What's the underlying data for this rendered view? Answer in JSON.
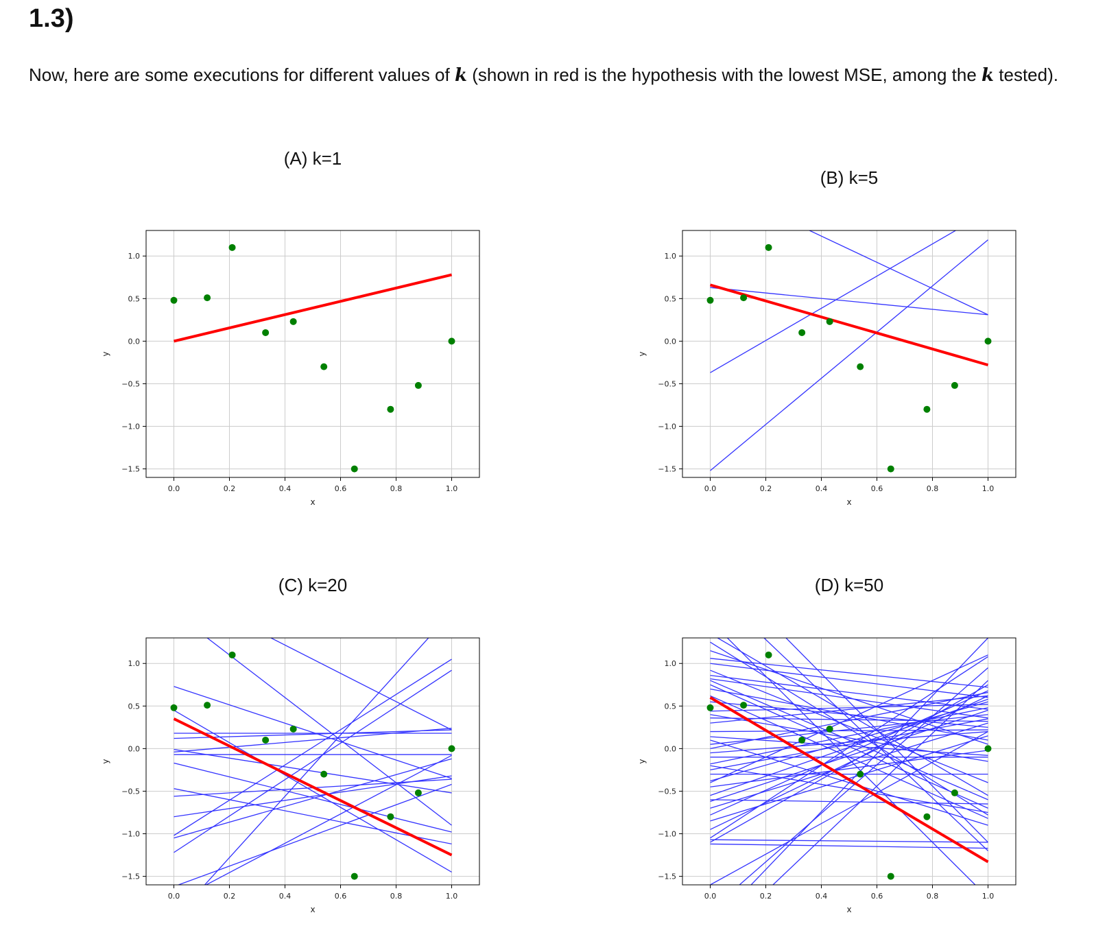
{
  "heading": "1.3)",
  "intro": {
    "part1": "Now, here are some executions for different values of ",
    "k1": "k",
    "part2": " (shown in red is the hypothesis with the lowest MSE, among the ",
    "k2": "k",
    "part3": " tested)."
  },
  "colors": {
    "points": "#008000",
    "best": "#ff0000",
    "candidates": "#3333ff",
    "grid": "#cccccc"
  },
  "chart_data": [
    {
      "type": "scatter",
      "title": "(A) k=1",
      "xlabel": "x",
      "ylabel": "y",
      "xlim": [
        -0.1,
        1.1
      ],
      "ylim": [
        -1.6,
        1.3
      ],
      "xticks": [
        "0.0",
        "0.2",
        "0.4",
        "0.6",
        "0.8",
        "1.0"
      ],
      "yticks": [
        "1.0",
        "0.5",
        "0.0",
        "−0.5",
        "−1.0",
        "−1.5"
      ],
      "grid": true,
      "points": {
        "x": [
          0.0,
          0.12,
          0.21,
          0.33,
          0.43,
          0.54,
          0.65,
          0.78,
          0.88,
          1.0
        ],
        "y": [
          0.48,
          0.51,
          1.1,
          0.1,
          0.23,
          -0.3,
          -1.5,
          -0.8,
          -0.52,
          0.0
        ]
      },
      "best_line": {
        "x0": 0,
        "y0": 0.0,
        "x1": 1,
        "y1": 0.78
      },
      "candidate_lines": []
    },
    {
      "type": "scatter",
      "title": "(B) k=5",
      "xlabel": "x",
      "ylabel": "y",
      "xlim": [
        -0.1,
        1.1
      ],
      "ylim": [
        -1.6,
        1.3
      ],
      "xticks": [
        "0.0",
        "0.2",
        "0.4",
        "0.6",
        "0.8",
        "1.0"
      ],
      "yticks": [
        "1.0",
        "0.5",
        "0.0",
        "−0.5",
        "−1.0",
        "−1.5"
      ],
      "grid": true,
      "points": {
        "x": [
          0.0,
          0.12,
          0.21,
          0.33,
          0.43,
          0.54,
          0.65,
          0.78,
          0.88,
          1.0
        ],
        "y": [
          0.48,
          0.51,
          1.1,
          0.1,
          0.23,
          -0.3,
          -1.5,
          -0.8,
          -0.52,
          0.0
        ]
      },
      "best_line": {
        "x0": 0,
        "y0": 0.66,
        "x1": 1,
        "y1": -0.28
      },
      "candidate_lines": [
        [
          -0.37,
          1.52
        ],
        [
          -1.52,
          1.19
        ],
        [
          1.85,
          0.31
        ],
        [
          0.63,
          0.31
        ]
      ]
    },
    {
      "type": "scatter",
      "title": "(C) k=20",
      "xlabel": "x",
      "ylabel": "y",
      "xlim": [
        -0.1,
        1.1
      ],
      "ylim": [
        -1.6,
        1.3
      ],
      "xticks": [
        "0.0",
        "0.2",
        "0.4",
        "0.6",
        "0.8",
        "1.0"
      ],
      "yticks": [
        "1.0",
        "0.5",
        "0.0",
        "−0.5",
        "−1.0",
        "−1.5"
      ],
      "grid": true,
      "points": {
        "x": [
          0.0,
          0.12,
          0.21,
          0.33,
          0.43,
          0.54,
          0.65,
          0.78,
          0.88,
          1.0
        ],
        "y": [
          0.48,
          0.51,
          1.1,
          0.1,
          0.23,
          -0.3,
          -1.5,
          -0.8,
          -0.52,
          0.0
        ]
      },
      "best_line": {
        "x0": 0,
        "y0": 0.35,
        "x1": 1,
        "y1": -1.25
      },
      "candidate_lines": [
        [
          0.73,
          -0.35
        ],
        [
          -1.02,
          1.05
        ],
        [
          0.18,
          0.18
        ],
        [
          0.12,
          0.22
        ],
        [
          -0.07,
          -0.07
        ],
        [
          -0.04,
          0.24
        ],
        [
          -0.56,
          -0.36
        ],
        [
          -0.8,
          -0.32
        ],
        [
          -1.22,
          0.92
        ],
        [
          -1.62,
          -0.42
        ],
        [
          -0.17,
          -0.98
        ],
        [
          -0.47,
          -1.12
        ],
        [
          -0.01,
          -0.52
        ],
        [
          -2.0,
          1.6
        ],
        [
          1.88,
          0.22
        ],
        [
          -1.05,
          -0.12
        ],
        [
          -1.8,
          -0.08
        ],
        [
          1.6,
          -0.9
        ],
        [
          0.45,
          -1.45
        ]
      ]
    },
    {
      "type": "scatter",
      "title": "(D) k=50",
      "xlabel": "x",
      "ylabel": "y",
      "xlim": [
        -0.1,
        1.1
      ],
      "ylim": [
        -1.6,
        1.3
      ],
      "xticks": [
        "0.0",
        "0.2",
        "0.4",
        "0.6",
        "0.8",
        "1.0"
      ],
      "yticks": [
        "1.0",
        "0.5",
        "0.0",
        "−0.5",
        "−1.0",
        "−1.5"
      ],
      "grid": true,
      "points": {
        "x": [
          0.0,
          0.12,
          0.21,
          0.33,
          0.43,
          0.54,
          0.65,
          0.78,
          0.88,
          1.0
        ],
        "y": [
          0.48,
          0.51,
          1.1,
          0.1,
          0.23,
          -0.3,
          -1.5,
          -0.8,
          -0.52,
          0.0
        ]
      },
      "best_line": {
        "x0": 0,
        "y0": 0.6,
        "x1": 1,
        "y1": -1.33
      },
      "candidate_lines": [
        [
          1.06,
          0.72
        ],
        [
          1.0,
          0.6
        ],
        [
          0.86,
          0.46
        ],
        [
          0.82,
          0.36
        ],
        [
          0.8,
          -0.6
        ],
        [
          0.7,
          0.1
        ],
        [
          0.62,
          -0.82
        ],
        [
          0.55,
          0.25
        ],
        [
          0.44,
          0.52
        ],
        [
          0.36,
          0.32
        ],
        [
          0.3,
          0.62
        ],
        [
          0.2,
          0.22
        ],
        [
          0.14,
          -0.08
        ],
        [
          0.05,
          0.4
        ],
        [
          0.0,
          0.66
        ],
        [
          -0.05,
          0.2
        ],
        [
          -0.1,
          -0.1
        ],
        [
          -0.18,
          0.48
        ],
        [
          -0.25,
          0.35
        ],
        [
          -0.3,
          -0.3
        ],
        [
          -0.38,
          0.55
        ],
        [
          -0.45,
          -0.02
        ],
        [
          -0.55,
          0.58
        ],
        [
          -0.62,
          0.45
        ],
        [
          -0.7,
          0.3
        ],
        [
          -0.78,
          0.68
        ],
        [
          -0.85,
          0.15
        ],
        [
          -0.95,
          0.62
        ],
        [
          -1.05,
          1.08
        ],
        [
          -1.1,
          0.75
        ],
        [
          -1.07,
          -1.1
        ],
        [
          -1.12,
          -1.17
        ],
        [
          1.35,
          -0.55
        ],
        [
          1.25,
          -0.78
        ],
        [
          0.92,
          -0.4
        ],
        [
          0.75,
          -0.7
        ],
        [
          -0.6,
          -0.65
        ],
        [
          -0.2,
          -0.75
        ],
        [
          0.1,
          -0.9
        ],
        [
          1.5,
          -1.75
        ],
        [
          -1.9,
          0.95
        ],
        [
          -1.6,
          0.2
        ],
        [
          2.2,
          -1.1
        ],
        [
          1.9,
          -1.2
        ],
        [
          -2.1,
          1.3
        ],
        [
          -2.3,
          0.8
        ],
        [
          0.4,
          -0.15
        ],
        [
          1.15,
          0.05
        ],
        [
          -0.4,
          1.1
        ]
      ]
    }
  ]
}
